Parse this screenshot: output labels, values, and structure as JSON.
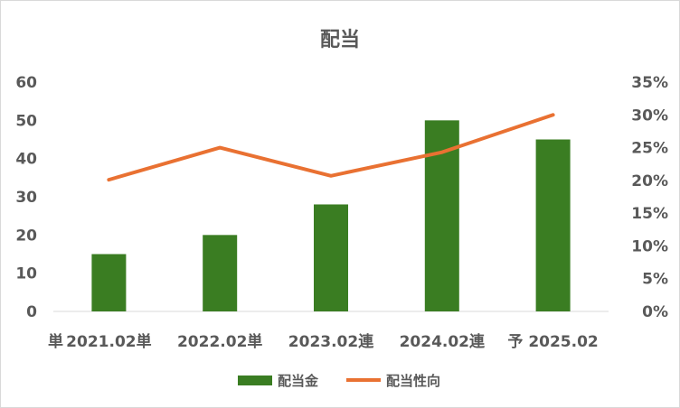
{
  "chart_data": {
    "type": "bar+line",
    "title": "配当",
    "corner_label": "単",
    "categories": [
      "2021.02単",
      "2022.02単",
      "2023.02連",
      "2024.02連",
      "予 2025.02"
    ],
    "series": [
      {
        "name": "配当金",
        "type": "bar",
        "axis": "left",
        "values": [
          15,
          20,
          28,
          50,
          45
        ],
        "color": "#3a7d22"
      },
      {
        "name": "配当性向",
        "type": "line",
        "axis": "right",
        "values": [
          20.1,
          25.0,
          20.7,
          24.3,
          30.0
        ],
        "color": "#e97132"
      }
    ],
    "y_left": {
      "min": 0,
      "max": 60,
      "step": 10,
      "ticks": [
        "0",
        "10",
        "20",
        "30",
        "40",
        "50",
        "60"
      ]
    },
    "y_right": {
      "min": 0,
      "max": 35,
      "step": 5,
      "ticks": [
        "0%",
        "5%",
        "10%",
        "15%",
        "20%",
        "25%",
        "30%",
        "35%"
      ]
    },
    "grid": false,
    "legend": "bottom"
  }
}
